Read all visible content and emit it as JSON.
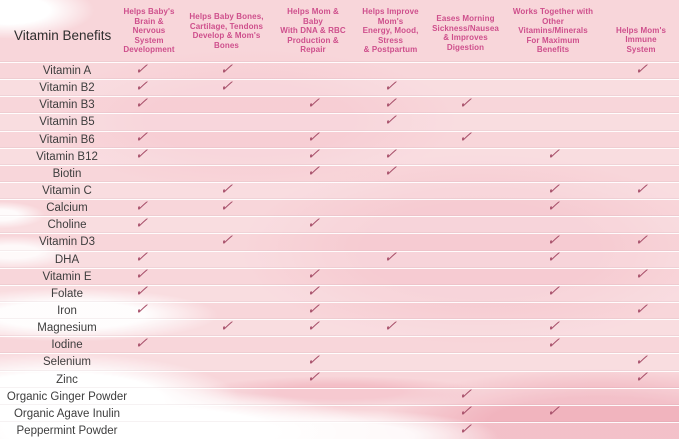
{
  "colors": {
    "header_text": "#ce4f8c",
    "checkmark": "#a8516b",
    "row_label_text": "#3d3d3d",
    "background_pink": "#f8d6da",
    "watercolor_deep_pink": "#eea5b2",
    "separator": "#ffffff"
  },
  "table": {
    "corner_label": "Vitamin Benefits",
    "checkmark": "✓",
    "columns": [
      {
        "label": "Helps Baby's\nBrain & Nervous\nSystem\nDevelopment"
      },
      {
        "label": "Helps Baby Bones,\nCartilage, Tendons\nDevelop & Mom's\nBones"
      },
      {
        "label": "Helps Mom &\nBaby\nWith DNA & RBC\nProduction &\nRepair"
      },
      {
        "label": "Helps Improve\nMom's\nEnergy, Mood,\nStress\n& Postpartum"
      },
      {
        "label": "Eases Morning\nSickness/Nausea\n& Improves\nDigestion"
      },
      {
        "label": "Works Together with\nOther\nVitamins/Minerals\nFor Maximum\nBenefits"
      },
      {
        "label": "Helps Mom's\nImmune\nSystem"
      }
    ]
  },
  "chart_data": {
    "type": "table",
    "title": "Vitamin Benefits",
    "columns": [
      "Helps Baby's Brain & Nervous System Development",
      "Helps Baby Bones, Cartilage, Tendons Develop & Mom's Bones",
      "Helps Mom & Baby With DNA & RBC Production & Repair",
      "Helps Improve Mom's Energy, Mood, Stress & Postpartum",
      "Eases Morning Sickness/Nausea & Improves Digestion",
      "Works Together with Other Vitamins/Minerals For Maximum Benefits",
      "Helps Mom's Immune System"
    ],
    "rows": [
      {
        "name": "Vitamin A",
        "checks": [
          1,
          1,
          0,
          0,
          0,
          0,
          1
        ]
      },
      {
        "name": "Vitamin B2",
        "checks": [
          1,
          1,
          0,
          1,
          0,
          0,
          0
        ]
      },
      {
        "name": "Vitamin B3",
        "checks": [
          1,
          0,
          1,
          1,
          1,
          0,
          0
        ]
      },
      {
        "name": "Vitamin B5",
        "checks": [
          0,
          0,
          0,
          1,
          0,
          0,
          0
        ]
      },
      {
        "name": "Vitamin B6",
        "checks": [
          1,
          0,
          1,
          0,
          1,
          0,
          0
        ]
      },
      {
        "name": "Vitamin B12",
        "checks": [
          1,
          0,
          1,
          1,
          0,
          1,
          0
        ]
      },
      {
        "name": "Biotin",
        "checks": [
          0,
          0,
          1,
          1,
          0,
          0,
          0
        ]
      },
      {
        "name": "Vitamin C",
        "checks": [
          0,
          1,
          0,
          0,
          0,
          1,
          1
        ]
      },
      {
        "name": "Calcium",
        "checks": [
          1,
          1,
          0,
          0,
          0,
          1,
          0
        ]
      },
      {
        "name": "Choline",
        "checks": [
          1,
          0,
          1,
          0,
          0,
          0,
          0
        ]
      },
      {
        "name": "Vitamin D3",
        "checks": [
          0,
          1,
          0,
          0,
          0,
          1,
          1
        ]
      },
      {
        "name": "DHA",
        "checks": [
          1,
          0,
          0,
          1,
          0,
          1,
          0
        ]
      },
      {
        "name": "Vitamin E",
        "checks": [
          1,
          0,
          1,
          0,
          0,
          0,
          1
        ]
      },
      {
        "name": "Folate",
        "checks": [
          1,
          0,
          1,
          0,
          0,
          1,
          0
        ]
      },
      {
        "name": "Iron",
        "checks": [
          1,
          0,
          1,
          0,
          0,
          0,
          1
        ]
      },
      {
        "name": "Magnesium",
        "checks": [
          0,
          1,
          1,
          1,
          0,
          1,
          0
        ]
      },
      {
        "name": "Iodine",
        "checks": [
          1,
          0,
          0,
          0,
          0,
          1,
          0
        ]
      },
      {
        "name": "Selenium",
        "checks": [
          0,
          0,
          1,
          0,
          0,
          0,
          1
        ]
      },
      {
        "name": "Zinc",
        "checks": [
          0,
          0,
          1,
          0,
          0,
          0,
          1
        ]
      },
      {
        "name": "Organic Ginger Powder",
        "checks": [
          0,
          0,
          0,
          0,
          1,
          0,
          0
        ]
      },
      {
        "name": "Organic Agave Inulin",
        "checks": [
          0,
          0,
          0,
          0,
          1,
          1,
          0
        ]
      },
      {
        "name": "Peppermint Powder",
        "checks": [
          0,
          0,
          0,
          0,
          1,
          0,
          0
        ]
      }
    ]
  }
}
